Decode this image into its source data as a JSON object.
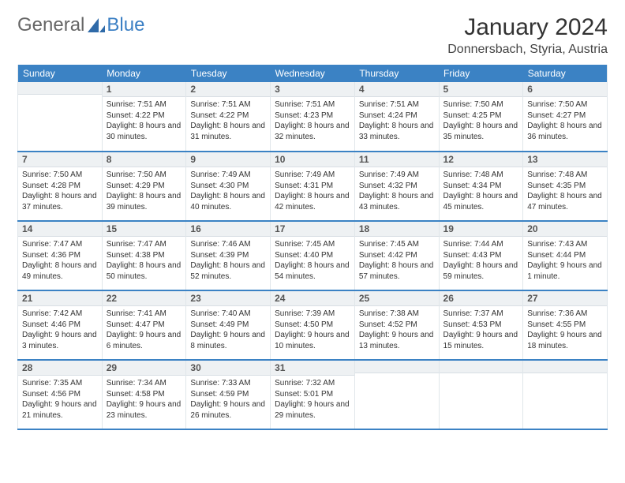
{
  "brand": {
    "part1": "General",
    "part2": "Blue",
    "accent_color": "#3b7fc4"
  },
  "title": "January 2024",
  "location": "Donnersbach, Styria, Austria",
  "colors": {
    "header_bg": "#3b82c4",
    "header_text": "#ffffff",
    "daynum_bg": "#eef1f3",
    "border": "#e0e6ea",
    "week_divider": "#3b82c4",
    "text": "#333333"
  },
  "weekdays": [
    "Sunday",
    "Monday",
    "Tuesday",
    "Wednesday",
    "Thursday",
    "Friday",
    "Saturday"
  ],
  "weeks": [
    [
      {
        "num": "",
        "sunrise": "",
        "sunset": "",
        "daylight": ""
      },
      {
        "num": "1",
        "sunrise": "Sunrise: 7:51 AM",
        "sunset": "Sunset: 4:22 PM",
        "daylight": "Daylight: 8 hours and 30 minutes."
      },
      {
        "num": "2",
        "sunrise": "Sunrise: 7:51 AM",
        "sunset": "Sunset: 4:22 PM",
        "daylight": "Daylight: 8 hours and 31 minutes."
      },
      {
        "num": "3",
        "sunrise": "Sunrise: 7:51 AM",
        "sunset": "Sunset: 4:23 PM",
        "daylight": "Daylight: 8 hours and 32 minutes."
      },
      {
        "num": "4",
        "sunrise": "Sunrise: 7:51 AM",
        "sunset": "Sunset: 4:24 PM",
        "daylight": "Daylight: 8 hours and 33 minutes."
      },
      {
        "num": "5",
        "sunrise": "Sunrise: 7:50 AM",
        "sunset": "Sunset: 4:25 PM",
        "daylight": "Daylight: 8 hours and 35 minutes."
      },
      {
        "num": "6",
        "sunrise": "Sunrise: 7:50 AM",
        "sunset": "Sunset: 4:27 PM",
        "daylight": "Daylight: 8 hours and 36 minutes."
      }
    ],
    [
      {
        "num": "7",
        "sunrise": "Sunrise: 7:50 AM",
        "sunset": "Sunset: 4:28 PM",
        "daylight": "Daylight: 8 hours and 37 minutes."
      },
      {
        "num": "8",
        "sunrise": "Sunrise: 7:50 AM",
        "sunset": "Sunset: 4:29 PM",
        "daylight": "Daylight: 8 hours and 39 minutes."
      },
      {
        "num": "9",
        "sunrise": "Sunrise: 7:49 AM",
        "sunset": "Sunset: 4:30 PM",
        "daylight": "Daylight: 8 hours and 40 minutes."
      },
      {
        "num": "10",
        "sunrise": "Sunrise: 7:49 AM",
        "sunset": "Sunset: 4:31 PM",
        "daylight": "Daylight: 8 hours and 42 minutes."
      },
      {
        "num": "11",
        "sunrise": "Sunrise: 7:49 AM",
        "sunset": "Sunset: 4:32 PM",
        "daylight": "Daylight: 8 hours and 43 minutes."
      },
      {
        "num": "12",
        "sunrise": "Sunrise: 7:48 AM",
        "sunset": "Sunset: 4:34 PM",
        "daylight": "Daylight: 8 hours and 45 minutes."
      },
      {
        "num": "13",
        "sunrise": "Sunrise: 7:48 AM",
        "sunset": "Sunset: 4:35 PM",
        "daylight": "Daylight: 8 hours and 47 minutes."
      }
    ],
    [
      {
        "num": "14",
        "sunrise": "Sunrise: 7:47 AM",
        "sunset": "Sunset: 4:36 PM",
        "daylight": "Daylight: 8 hours and 49 minutes."
      },
      {
        "num": "15",
        "sunrise": "Sunrise: 7:47 AM",
        "sunset": "Sunset: 4:38 PM",
        "daylight": "Daylight: 8 hours and 50 minutes."
      },
      {
        "num": "16",
        "sunrise": "Sunrise: 7:46 AM",
        "sunset": "Sunset: 4:39 PM",
        "daylight": "Daylight: 8 hours and 52 minutes."
      },
      {
        "num": "17",
        "sunrise": "Sunrise: 7:45 AM",
        "sunset": "Sunset: 4:40 PM",
        "daylight": "Daylight: 8 hours and 54 minutes."
      },
      {
        "num": "18",
        "sunrise": "Sunrise: 7:45 AM",
        "sunset": "Sunset: 4:42 PM",
        "daylight": "Daylight: 8 hours and 57 minutes."
      },
      {
        "num": "19",
        "sunrise": "Sunrise: 7:44 AM",
        "sunset": "Sunset: 4:43 PM",
        "daylight": "Daylight: 8 hours and 59 minutes."
      },
      {
        "num": "20",
        "sunrise": "Sunrise: 7:43 AM",
        "sunset": "Sunset: 4:44 PM",
        "daylight": "Daylight: 9 hours and 1 minute."
      }
    ],
    [
      {
        "num": "21",
        "sunrise": "Sunrise: 7:42 AM",
        "sunset": "Sunset: 4:46 PM",
        "daylight": "Daylight: 9 hours and 3 minutes."
      },
      {
        "num": "22",
        "sunrise": "Sunrise: 7:41 AM",
        "sunset": "Sunset: 4:47 PM",
        "daylight": "Daylight: 9 hours and 6 minutes."
      },
      {
        "num": "23",
        "sunrise": "Sunrise: 7:40 AM",
        "sunset": "Sunset: 4:49 PM",
        "daylight": "Daylight: 9 hours and 8 minutes."
      },
      {
        "num": "24",
        "sunrise": "Sunrise: 7:39 AM",
        "sunset": "Sunset: 4:50 PM",
        "daylight": "Daylight: 9 hours and 10 minutes."
      },
      {
        "num": "25",
        "sunrise": "Sunrise: 7:38 AM",
        "sunset": "Sunset: 4:52 PM",
        "daylight": "Daylight: 9 hours and 13 minutes."
      },
      {
        "num": "26",
        "sunrise": "Sunrise: 7:37 AM",
        "sunset": "Sunset: 4:53 PM",
        "daylight": "Daylight: 9 hours and 15 minutes."
      },
      {
        "num": "27",
        "sunrise": "Sunrise: 7:36 AM",
        "sunset": "Sunset: 4:55 PM",
        "daylight": "Daylight: 9 hours and 18 minutes."
      }
    ],
    [
      {
        "num": "28",
        "sunrise": "Sunrise: 7:35 AM",
        "sunset": "Sunset: 4:56 PM",
        "daylight": "Daylight: 9 hours and 21 minutes."
      },
      {
        "num": "29",
        "sunrise": "Sunrise: 7:34 AM",
        "sunset": "Sunset: 4:58 PM",
        "daylight": "Daylight: 9 hours and 23 minutes."
      },
      {
        "num": "30",
        "sunrise": "Sunrise: 7:33 AM",
        "sunset": "Sunset: 4:59 PM",
        "daylight": "Daylight: 9 hours and 26 minutes."
      },
      {
        "num": "31",
        "sunrise": "Sunrise: 7:32 AM",
        "sunset": "Sunset: 5:01 PM",
        "daylight": "Daylight: 9 hours and 29 minutes."
      },
      {
        "num": "",
        "sunrise": "",
        "sunset": "",
        "daylight": ""
      },
      {
        "num": "",
        "sunrise": "",
        "sunset": "",
        "daylight": ""
      },
      {
        "num": "",
        "sunrise": "",
        "sunset": "",
        "daylight": ""
      }
    ]
  ]
}
